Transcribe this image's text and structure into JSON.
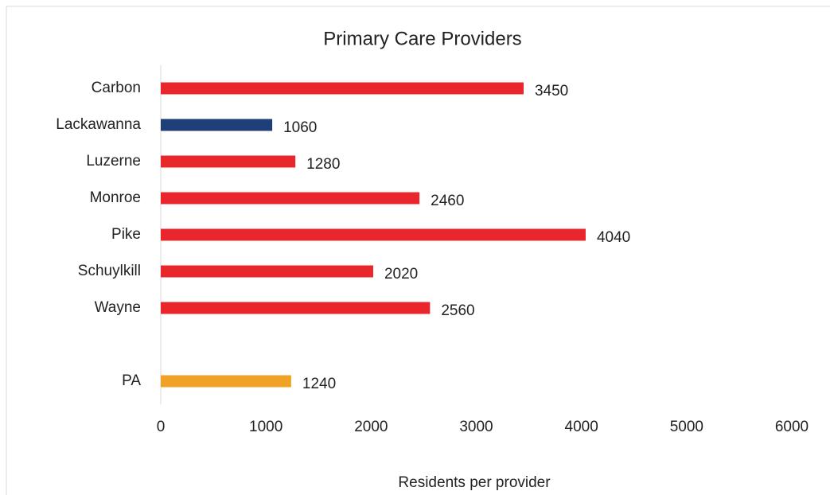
{
  "chart_data": {
    "type": "barh",
    "title": "Primary Care Providers",
    "x_label": "Residents per provider",
    "categories": [
      "Carbon",
      "Lackawanna",
      "Luzerne",
      "Monroe",
      "Pike",
      "Schuylkill",
      "Wayne",
      null,
      "PA"
    ],
    "values": [
      3450,
      1060,
      1280,
      2460,
      4040,
      2020,
      2560,
      null,
      1240
    ],
    "colors": [
      "#e8262c",
      "#1f3f78",
      "#e8262c",
      "#e8262c",
      "#e8262c",
      "#e8262c",
      "#e8262c",
      null,
      "#f0a226"
    ],
    "xlim": [
      0,
      6000
    ],
    "xticks": [
      0,
      1000,
      2000,
      3000,
      4000,
      5000,
      6000
    ],
    "grid": false
  }
}
